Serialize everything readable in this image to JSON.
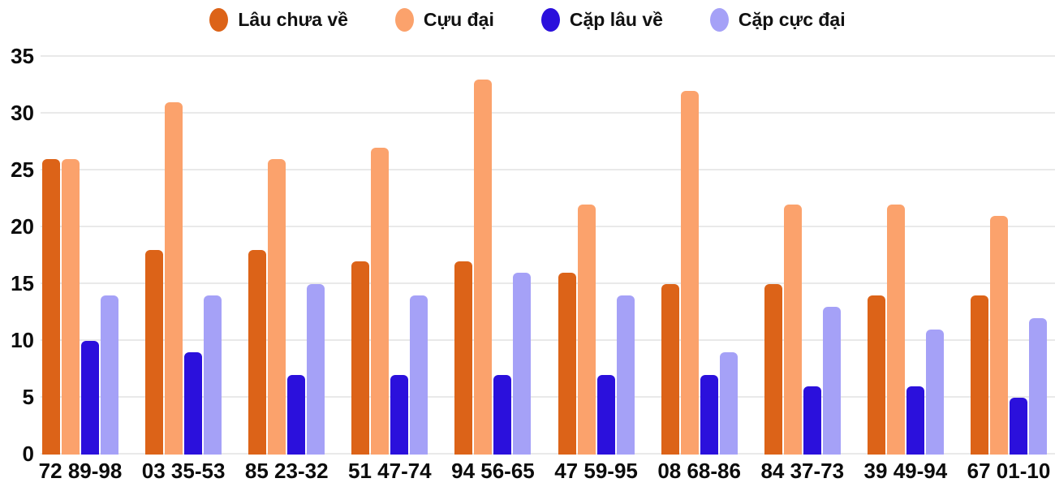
{
  "chart_data": {
    "type": "bar",
    "title": "",
    "xlabel": "",
    "ylabel": "",
    "categories": [
      "72 89-98",
      "03 35-53",
      "85 23-32",
      "51 47-74",
      "94 56-65",
      "47 59-95",
      "08 68-86",
      "84 37-73",
      "39 49-94",
      "67 01-10"
    ],
    "series": [
      {
        "name": "Lâu chưa về",
        "color": "#dc6318",
        "values": [
          26,
          18,
          18,
          17,
          17,
          16,
          15,
          15,
          14,
          14
        ]
      },
      {
        "name": "Cựu đại",
        "color": "#fba26c",
        "values": [
          26,
          31,
          26,
          27,
          33,
          22,
          32,
          22,
          22,
          21
        ]
      },
      {
        "name": "Cặp lâu về",
        "color": "#2b10dc",
        "values": [
          10,
          9,
          7,
          7,
          7,
          7,
          7,
          6,
          6,
          5
        ]
      },
      {
        "name": "Cặp cực đại",
        "color": "#a5a1f7",
        "values": [
          14,
          14,
          15,
          14,
          16,
          14,
          9,
          13,
          11,
          12
        ]
      }
    ],
    "yticks": [
      0,
      5,
      10,
      15,
      20,
      25,
      30,
      35
    ],
    "ylim": [
      0,
      35.2
    ],
    "grid": "horizontal",
    "legend_position": "top",
    "colors": {
      "gridline": "#e9e9e9",
      "axis_text": "#0c0c0c",
      "background": "#ffffff"
    }
  }
}
